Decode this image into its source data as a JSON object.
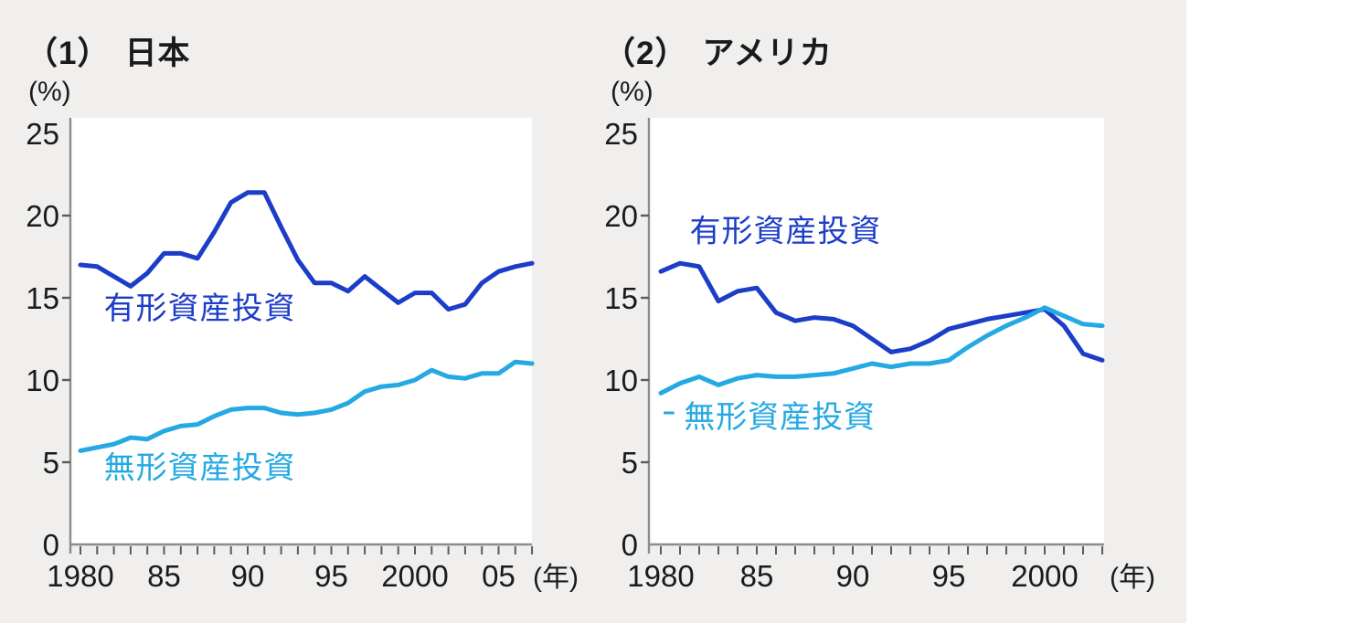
{
  "page": {
    "panel_bg": "#f0efee",
    "plot_bg": "#ffffff",
    "axis_color": "#8c8c8c",
    "tick_color": "#5a5a5a",
    "text_color": "#1a1a1a"
  },
  "chart_data": [
    {
      "type": "line",
      "title_num": "（1）",
      "title_text": "日本",
      "y_unit": "(%)",
      "x_unit": "(年)",
      "ylim": [
        0,
        25
      ],
      "y_ticks": [
        0,
        5,
        10,
        15,
        20,
        25
      ],
      "grid": false,
      "legend": "in-plot-labels",
      "start_year": 1980,
      "end_year": 2007,
      "x_tick_labels": [
        {
          "year": 1980,
          "label": "1980"
        },
        {
          "year": 1985,
          "label": "85"
        },
        {
          "year": 1990,
          "label": "90"
        },
        {
          "year": 1995,
          "label": "95"
        },
        {
          "year": 2000,
          "label": "2000"
        },
        {
          "year": 2005,
          "label": "05"
        }
      ],
      "series": [
        {
          "name": "有形資産投資",
          "color": "#1c3dc8",
          "label_year": 1981.4,
          "label_value": 14.4,
          "values": [
            17.0,
            16.9,
            16.3,
            15.7,
            16.5,
            17.7,
            17.7,
            17.4,
            19.0,
            20.8,
            21.4,
            21.4,
            19.3,
            17.3,
            15.9,
            15.9,
            15.4,
            16.3,
            15.5,
            14.7,
            15.3,
            15.3,
            14.3,
            14.6,
            15.9,
            16.6,
            16.9,
            17.1
          ]
        },
        {
          "name": "無形資産投資",
          "color": "#25a9e2",
          "label_year": 1981.4,
          "label_value": 4.7,
          "values": [
            5.7,
            5.9,
            6.1,
            6.5,
            6.4,
            6.9,
            7.2,
            7.3,
            7.8,
            8.2,
            8.3,
            8.3,
            8.0,
            7.9,
            8.0,
            8.2,
            8.6,
            9.3,
            9.6,
            9.7,
            10.0,
            10.6,
            10.2,
            10.1,
            10.4,
            10.4,
            11.1,
            11.0
          ]
        }
      ]
    },
    {
      "type": "line",
      "title_num": "（2）",
      "title_text": "アメリカ",
      "y_unit": "(%)",
      "x_unit": "(年)",
      "ylim": [
        0,
        25
      ],
      "y_ticks": [
        0,
        5,
        10,
        15,
        20,
        25
      ],
      "grid": false,
      "legend": "in-plot-labels",
      "start_year": 1980,
      "end_year": 2003,
      "x_tick_labels": [
        {
          "year": 1980,
          "label": "1980"
        },
        {
          "year": 1985,
          "label": "85"
        },
        {
          "year": 1990,
          "label": "90"
        },
        {
          "year": 1995,
          "label": "95"
        },
        {
          "year": 2000,
          "label": "2000"
        }
      ],
      "series": [
        {
          "name": "有形資産投資",
          "color": "#1c3dc8",
          "label_year": 1981.5,
          "label_value": 19.1,
          "values": [
            16.6,
            17.1,
            16.9,
            14.8,
            15.4,
            15.6,
            14.1,
            13.6,
            13.8,
            13.7,
            13.3,
            12.5,
            11.7,
            11.9,
            12.4,
            13.1,
            13.4,
            13.7,
            13.9,
            14.1,
            14.3,
            13.3,
            11.6,
            11.2
          ]
        },
        {
          "name": "無形資産投資",
          "color": "#25a9e2",
          "label_year": 1981.2,
          "label_value": 7.8,
          "label_marker": {
            "year": 1980.15,
            "end_year": 1980.7,
            "value": 8.0
          },
          "values": [
            9.2,
            9.8,
            10.2,
            9.7,
            10.1,
            10.3,
            10.2,
            10.2,
            10.3,
            10.4,
            10.7,
            11.0,
            10.8,
            11.0,
            11.0,
            11.2,
            12.0,
            12.7,
            13.3,
            13.8,
            14.4,
            13.9,
            13.4,
            13.3
          ]
        }
      ]
    }
  ]
}
